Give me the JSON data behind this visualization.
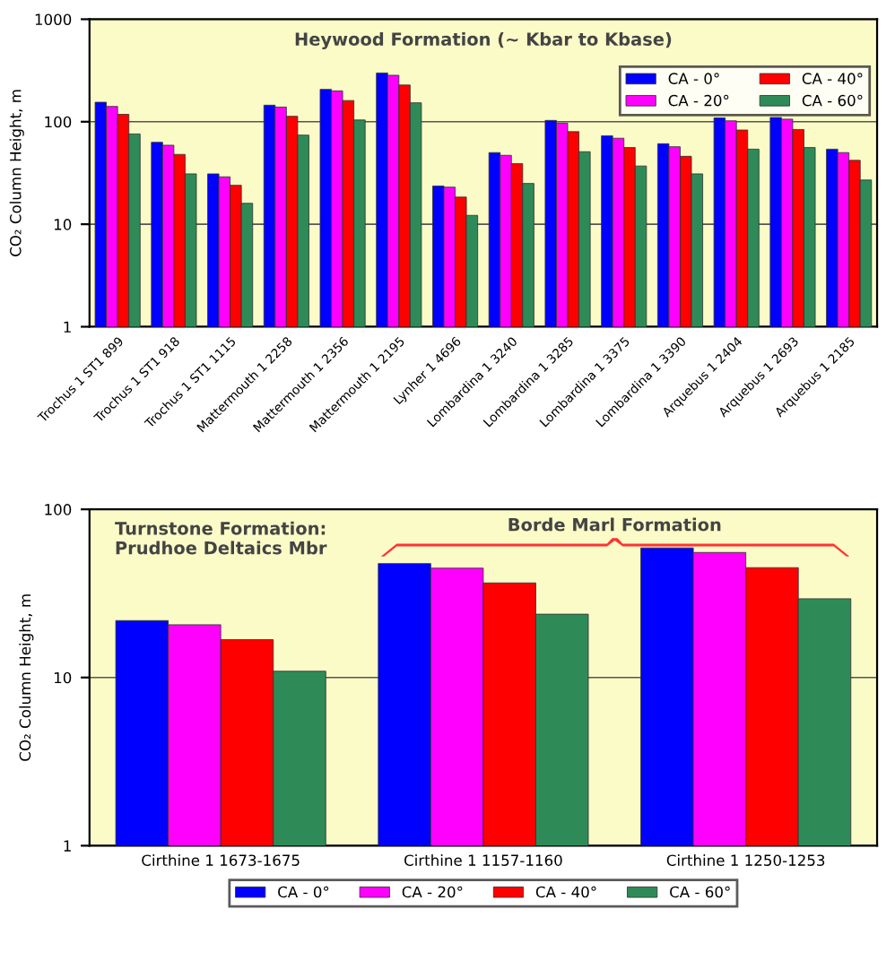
{
  "chart_data": [
    {
      "type": "bar",
      "ylabel": "CO₂ Column Height, m",
      "log": true,
      "ylim": [
        1,
        1000
      ],
      "yticks": [
        1,
        10,
        100,
        1000
      ],
      "grid": "y",
      "legend": "upper right",
      "annotations": [
        "Heywood Formation (~ Kbar to Kbase)"
      ],
      "categories": [
        "Trochus 1 ST1 899",
        "Trochus 1 ST1 918",
        "Trochus 1 ST1 1115",
        "Mattermouth 1 2258",
        "Mattermouth 1 2356",
        "Mattermouth 1 2195",
        "Lynher 1 4696",
        "Lombardina 1 3240",
        "Lombardina 1 3285",
        "Lombardina 1 3375",
        "Lombardina 1 3390",
        "Arquebus 1 2404",
        "Arquebus 1 2693",
        "Arquebus 1 2185"
      ],
      "series": [
        {
          "name": "CA - 0°",
          "color": "#0000ff",
          "values": [
            155,
            63,
            31,
            145,
            207,
            299,
            23.6,
            50,
            103,
            73,
            61,
            109,
            110,
            54
          ]
        },
        {
          "name": "CA - 20°",
          "color": "#ff00ff",
          "values": [
            141,
            59,
            29,
            139,
            200,
            284,
            23,
            47,
            97,
            69,
            57,
            102,
            106,
            50
          ]
        },
        {
          "name": "CA - 40°",
          "color": "#ff0000",
          "values": [
            118,
            48,
            24,
            113,
            161,
            228,
            18.4,
            39,
            80,
            56,
            46,
            83,
            84,
            42
          ]
        },
        {
          "name": "CA - 60°",
          "color": "#2e8b57",
          "values": [
            76,
            31,
            16,
            74,
            104,
            153,
            12.2,
            25,
            51,
            37,
            31,
            54,
            56,
            27
          ]
        }
      ]
    },
    {
      "type": "bar",
      "ylabel": "CO₂ Column Height, m",
      "log": true,
      "ylim": [
        1,
        100
      ],
      "yticks": [
        1,
        10,
        100
      ],
      "grid": "y",
      "legend": "bottom",
      "annotations": [
        "Turnstone Formation:\nPrudhoe Deltaics Mbr",
        "Borde Marl Formation"
      ],
      "categories": [
        "Cirthine 1 1673-1675",
        "Cirthine 1 1157-1160",
        "Cirthine 1 1250-1253"
      ],
      "series": [
        {
          "name": "CA - 0°",
          "color": "#0000ff",
          "values": [
            21.8,
            47.6,
            59
          ]
        },
        {
          "name": "CA - 20°",
          "color": "#ff00ff",
          "values": [
            20.6,
            44.7,
            55.4
          ]
        },
        {
          "name": "CA - 40°",
          "color": "#ff0000",
          "values": [
            16.8,
            36.5,
            45
          ]
        },
        {
          "name": "CA - 60°",
          "color": "#2e8b57",
          "values": [
            10.9,
            23.8,
            29.4
          ]
        }
      ]
    }
  ]
}
